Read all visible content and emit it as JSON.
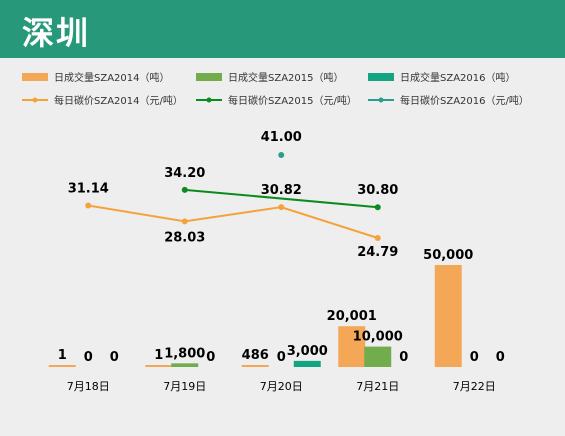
{
  "title": "深圳",
  "colors": {
    "header": "#27997a",
    "background": "#eeeeee",
    "vol2014": "#f4a857",
    "vol2015": "#72ac4d",
    "vol2016": "#13a581",
    "price2014": "#f4a23a",
    "price2015": "#0b8a1e",
    "price2016": "#2a9e8c"
  },
  "chart_data": {
    "type": "bar",
    "categories": [
      "7月18日",
      "7月19日",
      "7月20日",
      "7月21日",
      "7月22日"
    ],
    "legend_position": "top",
    "grid": false,
    "bar_series": [
      {
        "name": "日成交量SZA2014（吨）",
        "values": [
          1,
          1,
          486,
          20001,
          50000
        ],
        "labels": [
          "1",
          "1",
          "486",
          "20,001",
          "50,000"
        ]
      },
      {
        "name": "日成交量SZA2015（吨）",
        "values": [
          0,
          1800,
          0,
          10000,
          0
        ],
        "labels": [
          "0",
          "1,800",
          "0",
          "10,000",
          "0"
        ]
      },
      {
        "name": "日成交量SZA2016（吨）",
        "values": [
          0,
          0,
          3000,
          0,
          0
        ],
        "labels": [
          "0",
          "0",
          "3,000",
          "0",
          "0"
        ]
      }
    ],
    "line_series": [
      {
        "name": "每日碳价SZA2014（元/吨）",
        "values": [
          31.14,
          28.03,
          30.82,
          24.79,
          null
        ],
        "labels": [
          "31.14",
          "28.03",
          "30.82",
          "24.79",
          ""
        ]
      },
      {
        "name": "每日碳价SZA2015（元/吨）",
        "values": [
          null,
          34.2,
          null,
          30.8,
          null
        ],
        "labels": [
          "",
          "34.20",
          "",
          "30.80",
          ""
        ]
      },
      {
        "name": "每日碳价SZA2016（元/吨）",
        "values": [
          null,
          null,
          41.0,
          null,
          null
        ],
        "labels": [
          "",
          "",
          "41.00",
          "",
          ""
        ]
      }
    ]
  }
}
